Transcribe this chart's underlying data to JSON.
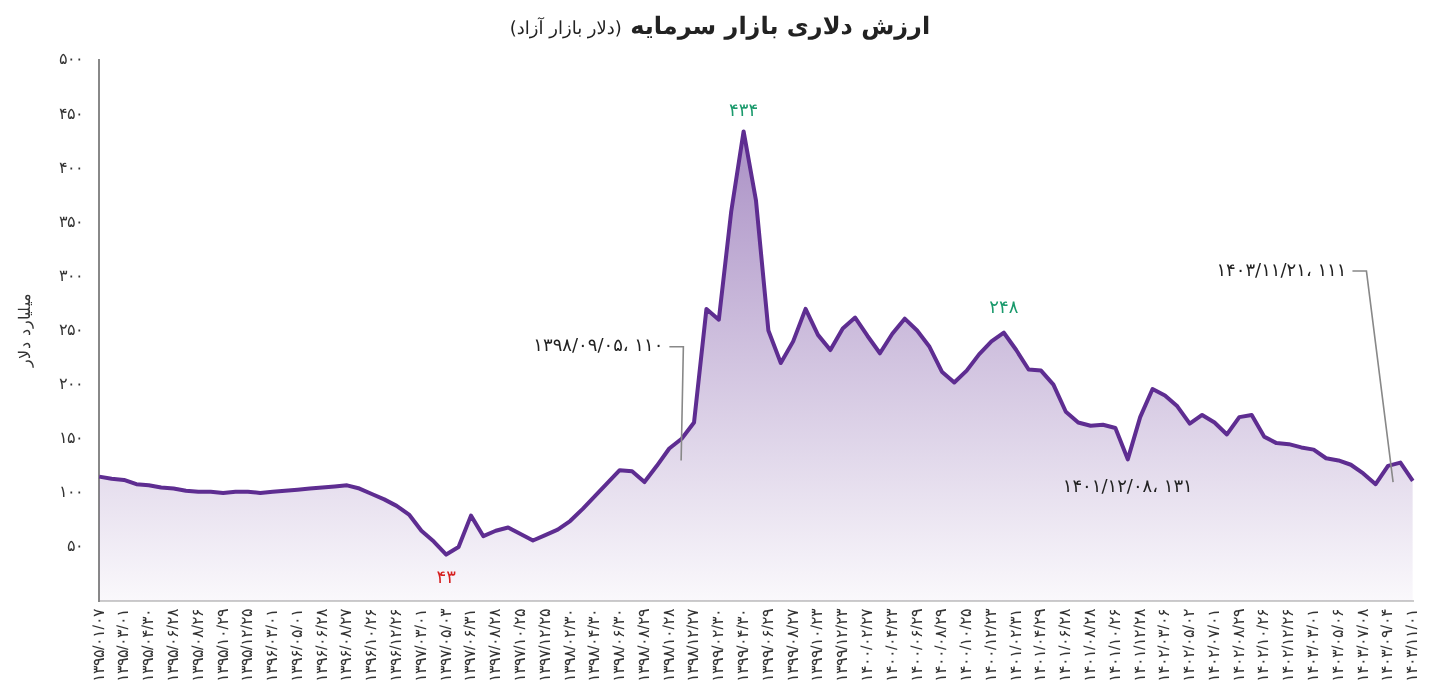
{
  "chart_data": {
    "type": "area",
    "title": "ارزش دلاری بازار سرمایه",
    "subtitle": "(دلار بازار آزاد)",
    "ylabel": "میلیارد دلار",
    "categories": [
      "۱۳۹۵/۰۱/۰۷",
      null,
      "۱۳۹۵/۰۳/۰۱",
      null,
      "۱۳۹۵/۰۴/۳۰",
      null,
      "۱۳۹۵/۰۶/۲۸",
      null,
      "۱۳۹۵/۰۸/۲۶",
      null,
      "۱۳۹۵/۱۰/۲۹",
      null,
      "۱۳۹۵/۱۲/۲۵",
      null,
      "۱۳۹۶/۰۳/۰۱",
      null,
      "۱۳۹۶/۰۵/۰۱",
      null,
      "۱۳۹۶/۰۶/۲۸",
      null,
      "۱۳۹۶/۰۸/۲۷",
      null,
      "۱۳۹۶/۱۰/۲۶",
      null,
      "۱۳۹۶/۱۲/۲۶",
      null,
      "۱۳۹۷/۰۳/۰۱",
      null,
      "۱۳۹۷/۰۵/۰۳",
      null,
      "۱۳۹۷/۰۶/۳۱",
      null,
      "۱۳۹۷/۰۸/۲۸",
      null,
      "۱۳۹۷/۱۰/۲۵",
      null,
      "۱۳۹۷/۱۲/۲۵",
      null,
      "۱۳۹۸/۰۲/۳۰",
      null,
      "۱۳۹۸/۰۴/۳۰",
      null,
      "۱۳۹۸/۰۶/۳۰",
      null,
      "۱۳۹۸/۰۸/۲۹",
      null,
      "۱۳۹۸/۱۰/۲۸",
      null,
      "۱۳۹۸/۱۲/۲۷",
      null,
      "۱۳۹۹/۰۲/۳۰",
      null,
      "۱۳۹۹/۰۴/۳۰",
      null,
      "۱۳۹۹/۰۶/۲۹",
      null,
      "۱۳۹۹/۰۸/۲۷",
      null,
      "۱۳۹۹/۱۰/۲۳",
      null,
      "۱۳۹۹/۱۲/۲۳",
      null,
      "۱۴۰۰/۰۲/۲۷",
      null,
      "۱۴۰۰/۰۴/۲۳",
      null,
      "۱۴۰۰/۰۶/۲۹",
      null,
      "۱۴۰۰/۰۸/۲۹",
      null,
      "۱۴۰۰/۱۰/۲۵",
      null,
      "۱۴۰۰/۱۲/۲۳",
      null,
      "۱۴۰۱/۰۲/۳۱",
      null,
      "۱۴۰۱/۰۴/۲۹",
      null,
      "۱۴۰۱/۰۶/۲۸",
      null,
      "۱۴۰۱/۰۸/۲۸",
      null,
      "۱۴۰۱/۱۰/۲۶",
      null,
      "۱۴۰۱/۱۲/۲۸",
      null,
      "۱۴۰۲/۰۳/۰۶",
      null,
      "۱۴۰۲/۰۵/۰۲",
      null,
      "۱۴۰۲/۰۷/۰۱",
      null,
      "۱۴۰۲/۰۸/۲۹",
      null,
      "۱۴۰۲/۱۰/۲۶",
      null,
      "۱۴۰۲/۱۲/۲۶",
      null,
      "۱۴۰۳/۰۳/۰۱",
      null,
      "۱۴۰۳/۰۵/۰۶",
      null,
      "۱۴۰۳/۰۷/۰۸",
      null,
      "۱۴۰۳/۰۹/۰۴",
      null,
      "۱۴۰۳/۱۱/۰۱"
    ],
    "series": [
      {
        "color": "#5e2d91",
        "values": [
          115,
          113,
          112,
          108,
          107,
          105,
          104,
          102,
          101,
          101,
          100,
          101,
          101,
          100,
          101,
          102,
          103,
          104,
          105,
          106,
          107,
          104,
          99,
          94,
          88,
          80,
          65,
          55,
          43,
          50,
          79,
          60,
          65,
          68,
          62,
          56,
          61,
          66,
          74,
          85,
          97,
          109,
          121,
          120,
          110,
          125,
          141,
          150,
          165,
          270,
          260,
          360,
          434,
          370,
          250,
          220,
          240,
          270,
          246,
          232,
          252,
          262,
          245,
          229,
          247,
          261,
          250,
          235,
          212,
          202,
          213,
          228,
          240,
          248,
          232,
          214,
          213,
          200,
          175,
          165,
          162,
          163,
          160,
          131,
          170,
          196,
          190,
          180,
          164,
          172,
          165,
          154,
          170,
          172,
          152,
          146,
          145,
          142,
          140,
          132,
          130,
          126,
          118,
          108,
          125,
          128,
          111
        ]
      }
    ],
    "ylim": [
      0,
      500
    ],
    "yticks": [
      {
        "value": 50,
        "label": "۵۰"
      },
      {
        "value": 100,
        "label": "۱۰۰"
      },
      {
        "value": 150,
        "label": "۱۵۰"
      },
      {
        "value": 200,
        "label": "۲۰۰"
      },
      {
        "value": 250,
        "label": "۲۵۰"
      },
      {
        "value": 300,
        "label": "۳۰۰"
      },
      {
        "value": 350,
        "label": "۳۵۰"
      },
      {
        "value": 400,
        "label": "۴۰۰"
      },
      {
        "value": 450,
        "label": "۴۵۰"
      },
      {
        "value": 500,
        "label": "۵۰۰"
      }
    ],
    "grid": false,
    "legend": false,
    "marker": "none",
    "annotations": [
      {
        "text": "۴۳۴",
        "y": 434
      },
      {
        "text": "۴۳",
        "y": 43
      },
      {
        "text": "۲۴۸",
        "y": 248
      },
      "۱۳۹۸/۰۹/۰۵، ۱۱۰",
      {
        "text": "۱۴۰۱/۱۲/۰۸، ۱۳۱",
        "y": 131
      },
      "۱۴۰۳/۱۱/۲۱، ۱۱۱"
    ]
  }
}
